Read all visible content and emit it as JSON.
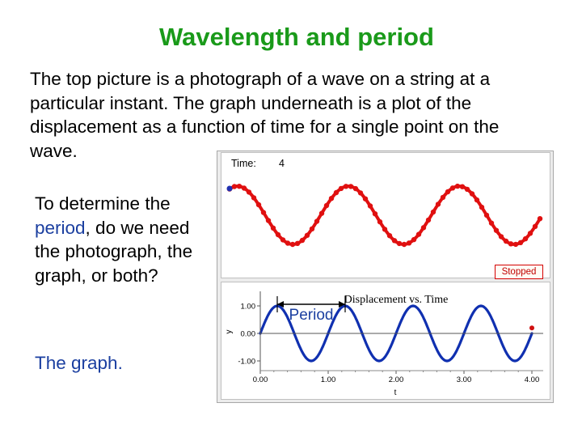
{
  "slide": {
    "title": "Wavelength and period",
    "intro": "The top picture is a photograph of a wave on a string at a particular instant. The graph underneath is a plot of the displacement as a function of time for a single point on the wave.",
    "question_before": "To determine the ",
    "question_highlight": "period",
    "question_after": ", do we need the photograph, the graph, or both?",
    "answer": "The graph."
  },
  "simulation": {
    "time_label": "Time:",
    "time_value": "4",
    "status_button": "Stopped"
  },
  "graph": {
    "title": "Displacement vs. Time",
    "annotation": "Period",
    "y_axis_label": "y",
    "x_axis_label": "t",
    "y_ticks": [
      "1.00",
      "0.00",
      "-1.00"
    ],
    "x_ticks": [
      "0.00",
      "1.00",
      "2.00",
      "3.00",
      "4.00"
    ]
  },
  "colors": {
    "title": "#1a9a1a",
    "highlight": "#1b3fa0",
    "wave_snapshot": "#e01010",
    "wave_trace": "#1030b0"
  },
  "chart_data": {
    "type": "line",
    "title": "Displacement vs. Time",
    "xlabel": "t",
    "ylabel": "y",
    "xlim": [
      0,
      4
    ],
    "ylim": [
      -1,
      1
    ],
    "period": 1,
    "x": [
      0,
      0.25,
      0.5,
      0.75,
      1,
      1.25,
      1.5,
      1.75,
      2,
      2.25,
      2.5,
      2.75,
      3,
      3.25,
      3.5,
      3.75,
      4
    ],
    "series": [
      {
        "values": [
          0,
          1,
          0,
          -1,
          0,
          1,
          0,
          -1,
          0,
          1,
          0,
          -1,
          0,
          1,
          0,
          -1,
          0
        ]
      }
    ],
    "annotation": "Period"
  }
}
